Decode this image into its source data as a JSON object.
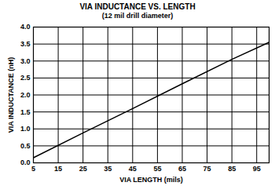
{
  "chart_data": {
    "type": "line",
    "title": "VIA INDUCTANCE VS. LENGTH",
    "subtitle": "(12 mil drill diameter)",
    "x_label": "VIA LENGTH (mils)",
    "y_label": "VIA INDUCTANCE (nH)",
    "x": [
      5,
      25,
      45,
      65,
      85,
      100
    ],
    "values": [
      0.15,
      0.88,
      1.6,
      2.33,
      3.05,
      3.55
    ],
    "color": "#000000",
    "xlim": [
      5,
      100
    ],
    "xticks": [
      5,
      15,
      25,
      35,
      45,
      55,
      65,
      75,
      85,
      95
    ],
    "ylim": [
      0,
      4
    ],
    "yticks": [
      0,
      0.5,
      1,
      1.5,
      2,
      2.5,
      3,
      3.5,
      4
    ],
    "grid": true
  }
}
